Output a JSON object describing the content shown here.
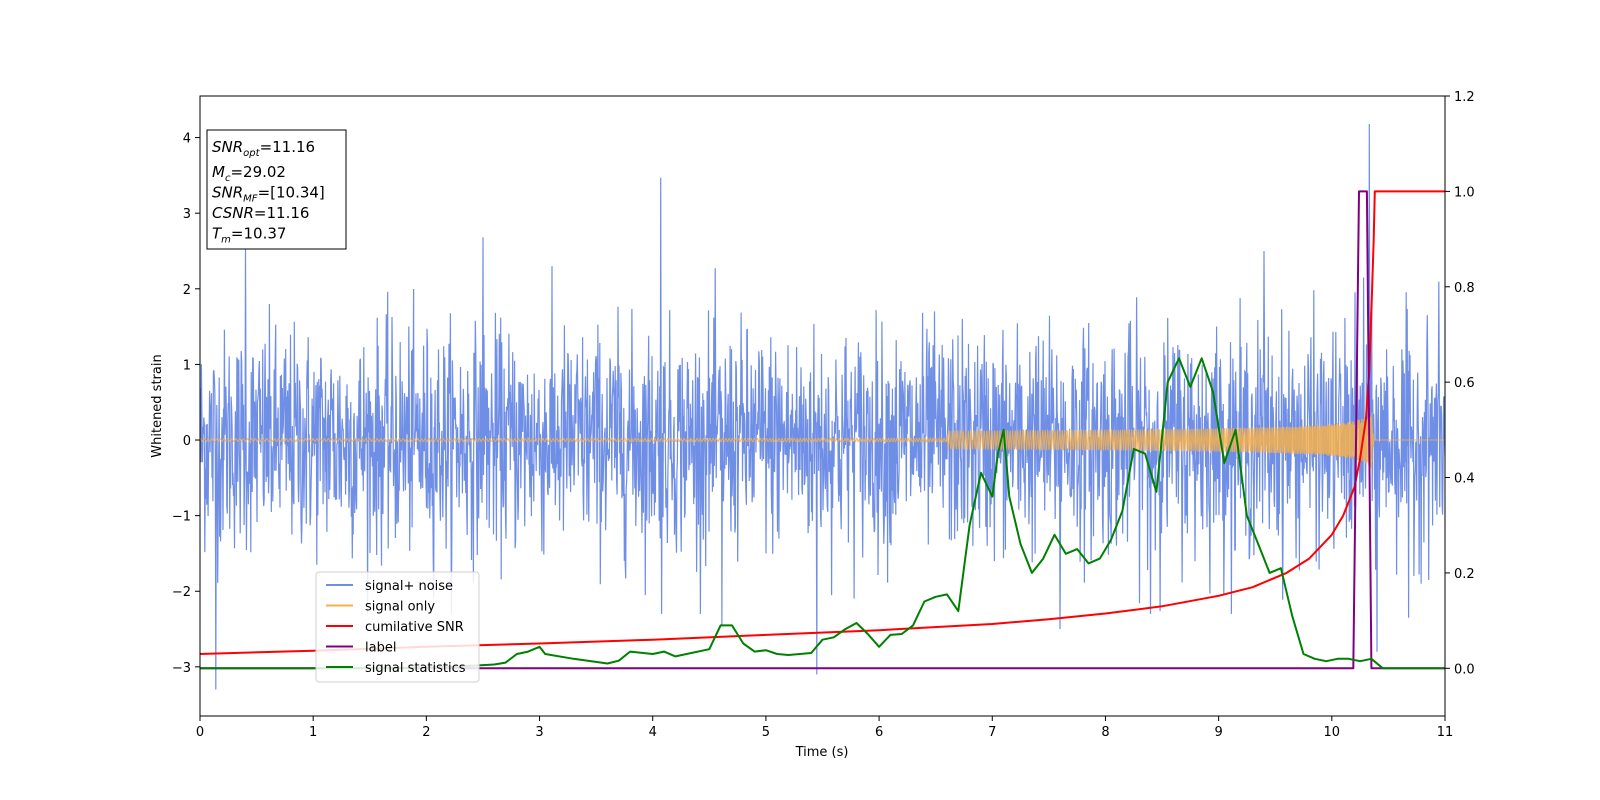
{
  "chart_data": {
    "type": "line",
    "xlabel": "Time (s)",
    "ylabel": "Whitened strain",
    "xlim": [
      0,
      11
    ],
    "ylim": [
      -3.65,
      4.55
    ],
    "y2lim": [
      -0.1,
      1.2
    ],
    "xticks": [
      "0",
      "1",
      "2",
      "3",
      "4",
      "5",
      "6",
      "7",
      "8",
      "9",
      "10",
      "11"
    ],
    "yticks": [
      "−3",
      "−2",
      "−1",
      "0",
      "1",
      "2",
      "3",
      "4"
    ],
    "y2ticks": [
      "0.0",
      "0.2",
      "0.4",
      "0.6",
      "0.8",
      "1.0",
      "1.2"
    ],
    "grid": false,
    "legend_position": "lower-left",
    "annotation": [
      {
        "base": "SNR",
        "sub": "opt",
        "text": "=11.16"
      },
      {
        "base": "M",
        "sub": "c",
        "text": "=29.02"
      },
      {
        "base": "SNR",
        "sub": "MF",
        "text": "=[10.34]"
      },
      {
        "base": "CSNR",
        "sub": "",
        "text": "=11.16"
      },
      {
        "base": "T",
        "sub": "m",
        "text": "=10.37"
      }
    ],
    "series": [
      {
        "name": "signal+ noise",
        "axis": "left",
        "color": "#6f8ee6",
        "noise_sigma": 0.72,
        "spikes": [
          [
            0.4,
            2.55
          ],
          [
            0.14,
            -3.3
          ],
          [
            2.5,
            2.68
          ],
          [
            4.07,
            3.47
          ],
          [
            4.08,
            -2.3
          ],
          [
            4.61,
            -2.45
          ],
          [
            5.45,
            -3.1
          ],
          [
            7.6,
            -2.5
          ],
          [
            8.4,
            -2.3
          ],
          [
            9.4,
            2.5
          ],
          [
            10.28,
            2.15
          ],
          [
            10.33,
            4.18
          ],
          [
            10.4,
            -2.8
          ],
          [
            10.68,
            -2.35
          ]
        ]
      },
      {
        "name": "signal only",
        "axis": "left",
        "color": "#f5b04d",
        "chirp_end_time": 10.37,
        "chirp_peak_amplitude": 0.45
      },
      {
        "name": "cumilative SNR",
        "axis": "right",
        "color": "#ff0000",
        "x": [
          0,
          1,
          2,
          3,
          4,
          5,
          6,
          7,
          7.5,
          8,
          8.5,
          9,
          9.3,
          9.6,
          9.8,
          10.0,
          10.1,
          10.2,
          10.25,
          10.3,
          10.33,
          10.35,
          10.37,
          10.38,
          11
        ],
        "values": [
          0.03,
          0.037,
          0.045,
          0.052,
          0.06,
          0.07,
          0.08,
          0.093,
          0.103,
          0.115,
          0.13,
          0.152,
          0.17,
          0.2,
          0.23,
          0.28,
          0.32,
          0.38,
          0.44,
          0.52,
          0.62,
          0.75,
          0.9,
          1.0,
          1.0
        ]
      },
      {
        "name": "label",
        "axis": "right",
        "color": "#800080",
        "x": [
          0,
          10.19,
          10.24,
          10.31,
          10.35,
          11
        ],
        "values": [
          0.0,
          0.0,
          1.0,
          1.0,
          0.0,
          0.0
        ]
      },
      {
        "name": "signal statistics",
        "axis": "right",
        "color": "#008000",
        "x": [
          0,
          0.5,
          1,
          1.5,
          2,
          2.3,
          2.6,
          2.7,
          2.8,
          2.9,
          3.0,
          3.05,
          3.3,
          3.6,
          3.7,
          3.8,
          4.0,
          4.1,
          4.2,
          4.5,
          4.6,
          4.7,
          4.8,
          4.9,
          5.0,
          5.1,
          5.2,
          5.3,
          5.4,
          5.5,
          5.6,
          5.7,
          5.8,
          5.9,
          6.0,
          6.1,
          6.2,
          6.3,
          6.4,
          6.5,
          6.6,
          6.7,
          6.8,
          6.9,
          7.0,
          7.05,
          7.1,
          7.15,
          7.25,
          7.35,
          7.45,
          7.55,
          7.65,
          7.75,
          7.85,
          7.95,
          8.0,
          8.05,
          8.15,
          8.25,
          8.35,
          8.45,
          8.55,
          8.65,
          8.75,
          8.85,
          8.95,
          9.05,
          9.15,
          9.25,
          9.35,
          9.45,
          9.55,
          9.65,
          9.75,
          9.85,
          9.95,
          10.05,
          10.15,
          10.25,
          10.35,
          10.45,
          11
        ],
        "values": [
          0.0,
          0.0,
          0.0,
          0.0,
          0.002,
          0.004,
          0.008,
          0.012,
          0.03,
          0.035,
          0.045,
          0.03,
          0.02,
          0.01,
          0.016,
          0.035,
          0.03,
          0.035,
          0.025,
          0.04,
          0.09,
          0.09,
          0.052,
          0.035,
          0.038,
          0.03,
          0.028,
          0.03,
          0.032,
          0.06,
          0.065,
          0.082,
          0.095,
          0.072,
          0.045,
          0.07,
          0.072,
          0.09,
          0.14,
          0.15,
          0.155,
          0.12,
          0.3,
          0.41,
          0.36,
          0.45,
          0.5,
          0.36,
          0.26,
          0.2,
          0.23,
          0.28,
          0.24,
          0.25,
          0.22,
          0.23,
          0.25,
          0.27,
          0.33,
          0.46,
          0.45,
          0.37,
          0.6,
          0.65,
          0.59,
          0.65,
          0.58,
          0.43,
          0.5,
          0.32,
          0.26,
          0.2,
          0.21,
          0.11,
          0.03,
          0.02,
          0.015,
          0.02,
          0.02,
          0.015,
          0.02,
          0.0,
          0.0
        ]
      }
    ]
  }
}
